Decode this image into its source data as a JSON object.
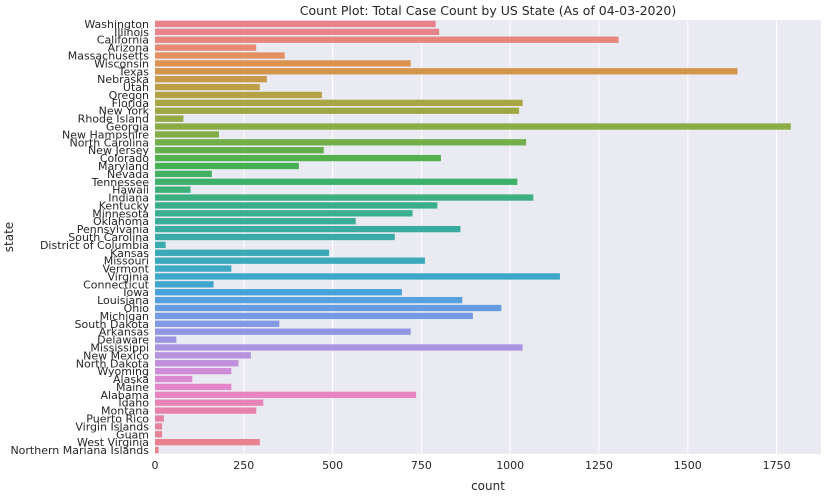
{
  "chart_data": {
    "type": "bar",
    "orientation": "horizontal",
    "title": "Count Plot: Total Case Count by US State (As of 04-03-2020)",
    "xlabel": "count",
    "ylabel": "state",
    "xlim": [
      0,
      1875
    ],
    "xticks": [
      0,
      250,
      500,
      750,
      1000,
      1250,
      1500,
      1750
    ],
    "grid": true,
    "categories": [
      "Washington",
      "Illinois",
      "California",
      "Arizona",
      "Massachusetts",
      "Wisconsin",
      "Texas",
      "Nebraska",
      "Utah",
      "Oregon",
      "Florida",
      "New York",
      "Rhode Island",
      "Georgia",
      "New Hampshire",
      "North Carolina",
      "New Jersey",
      "Colorado",
      "Maryland",
      "Nevada",
      "Tennessee",
      "Hawaii",
      "Indiana",
      "Kentucky",
      "Minnesota",
      "Oklahoma",
      "Pennsylvania",
      "South Carolina",
      "District of Columbia",
      "Kansas",
      "Missouri",
      "Vermont",
      "Virginia",
      "Connecticut",
      "Iowa",
      "Louisiana",
      "Ohio",
      "Michigan",
      "South Dakota",
      "Arkansas",
      "Delaware",
      "Mississippi",
      "New Mexico",
      "North Dakota",
      "Wyoming",
      "Alaska",
      "Maine",
      "Alabama",
      "Idaho",
      "Montana",
      "Puerto Rico",
      "Virgin Islands",
      "Guam",
      "West Virginia",
      "Northern Mariana Islands"
    ],
    "values": [
      790,
      800,
      1305,
      285,
      365,
      720,
      1640,
      315,
      295,
      470,
      1035,
      1025,
      80,
      1790,
      180,
      1045,
      475,
      805,
      405,
      160,
      1020,
      100,
      1065,
      795,
      725,
      565,
      860,
      675,
      30,
      490,
      760,
      215,
      1140,
      165,
      695,
      865,
      975,
      895,
      350,
      720,
      60,
      1035,
      270,
      235,
      215,
      105,
      215,
      735,
      305,
      285,
      25,
      20,
      20,
      295,
      10
    ],
    "colors": [
      "#e8828c",
      "#e8838a",
      "#e8857d",
      "#e88a72",
      "#e48f62",
      "#dc9350",
      "#d3954a",
      "#c89a48",
      "#bd9e47",
      "#b3a246",
      "#a8a545",
      "#9fa745",
      "#95a945",
      "#8bab45",
      "#80ad46",
      "#73af48",
      "#63b04a",
      "#52b14d",
      "#44b152",
      "#3fb15f",
      "#3db06a",
      "#3cb076",
      "#3baf80",
      "#3aae89",
      "#3aae91",
      "#3aad98",
      "#3aac9f",
      "#39aba6",
      "#39abad",
      "#3aaab4",
      "#3ba9bb",
      "#3ca8c2",
      "#3da7c9",
      "#3fa6d0",
      "#45a3d9",
      "#55a0de",
      "#649ce1",
      "#739ae3",
      "#8298e3",
      "#9096e2",
      "#9c95e1",
      "#a894df",
      "#b592dd",
      "#c290da",
      "#ce8dd6",
      "#da89d1",
      "#e486ca",
      "#e884bf",
      "#e883b5",
      "#e882ab",
      "#e882a3",
      "#e8829b",
      "#e88295",
      "#e88290",
      "#e8828c"
    ]
  }
}
